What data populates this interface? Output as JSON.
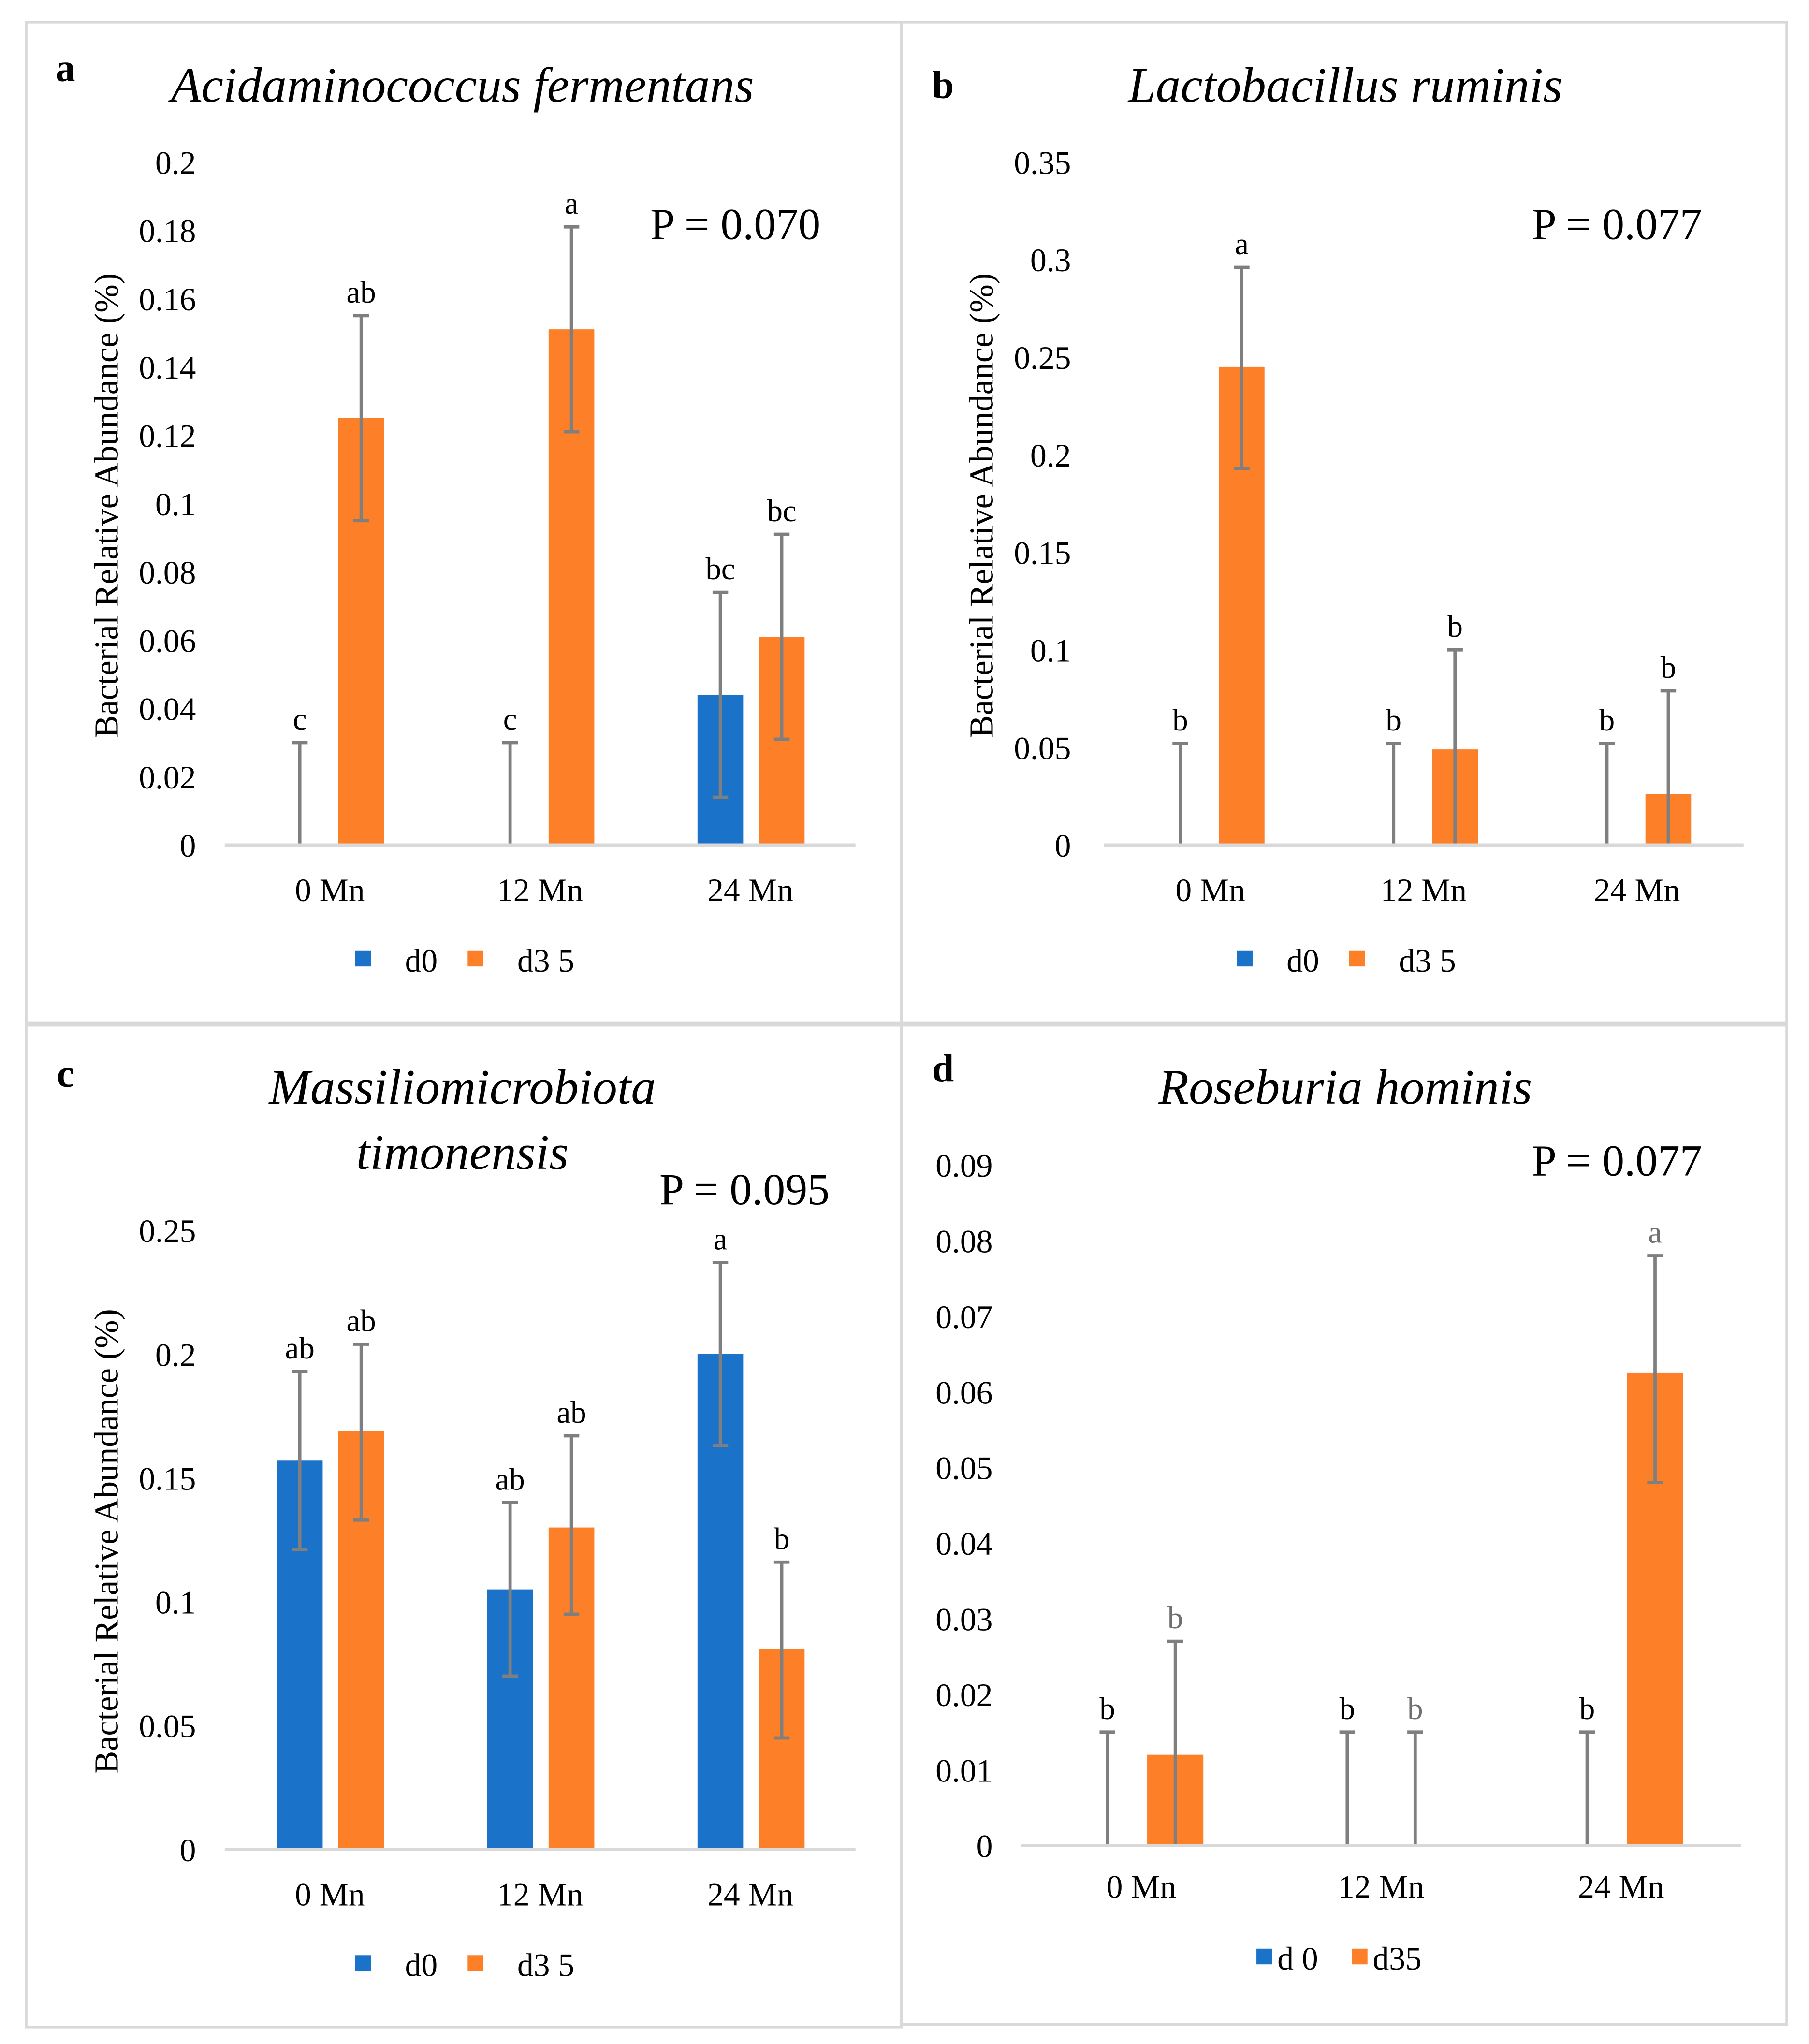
{
  "chart_data": [
    {
      "type": "bar",
      "panel": "a",
      "title": [
        "Acidaminococcus fermentans"
      ],
      "p_value": "P = 0.070",
      "ylabel": "Bacterial Relative Abundance (%)",
      "ylim": [
        0,
        0.2
      ],
      "yticks": [
        "0",
        "0.02",
        "0.04",
        "0.06",
        "0.08",
        "0.1",
        "0.12",
        "0.14",
        "0.16",
        "0.18",
        "0.2"
      ],
      "categories": [
        "0 Mn",
        "12 Mn",
        "24 Mn"
      ],
      "legend": [
        "d0",
        "d3 5"
      ],
      "series": [
        {
          "name": "d0",
          "color": "#1a72c9",
          "values": [
            0,
            0,
            0.044
          ],
          "err_high": [
            0.03,
            0.03,
            0.074
          ],
          "err_low": [
            0,
            0,
            0.014
          ],
          "letters": [
            "c",
            "c",
            "bc"
          ]
        },
        {
          "name": "d35",
          "color": "#fd7f28",
          "values": [
            0.125,
            0.151,
            0.061
          ],
          "err_high": [
            0.155,
            0.181,
            0.091
          ],
          "err_low": [
            0.095,
            0.121,
            0.031
          ],
          "letters": [
            "ab",
            "a",
            "bc"
          ]
        }
      ]
    },
    {
      "type": "bar",
      "panel": "b",
      "title": [
        "Lactobacillus ruminis"
      ],
      "p_value": "P = 0.077",
      "ylabel": "Bacterial Relative Abundance (%)",
      "ylim": [
        0,
        0.35
      ],
      "yticks": [
        "0",
        "0.05",
        "0.1",
        "0.15",
        "0.2",
        "0.25",
        "0.3",
        "0.35"
      ],
      "categories": [
        "0 Mn",
        "12 Mn",
        "24 Mn"
      ],
      "legend": [
        "d0",
        "d3 5"
      ],
      "series": [
        {
          "name": "d0",
          "color": "#1a72c9",
          "values": [
            0,
            0,
            0
          ],
          "err_high": [
            0.052,
            0.052,
            0.052
          ],
          "err_low": [
            0,
            0,
            0
          ],
          "letters": [
            "b",
            "b",
            "b"
          ]
        },
        {
          "name": "d35",
          "color": "#fd7f28",
          "values": [
            0.245,
            0.049,
            0.026
          ],
          "err_high": [
            0.296,
            0.1,
            0.079
          ],
          "err_low": [
            0.193,
            0,
            0
          ],
          "letters": [
            "a",
            "b",
            "b"
          ]
        }
      ]
    },
    {
      "type": "bar",
      "panel": "c",
      "title": [
        "Massiliomicrobiota",
        "timonensis"
      ],
      "p_value": "P = 0.095",
      "ylabel": "Bacterial Relative Abundance (%)",
      "ylim": [
        0,
        0.25
      ],
      "yticks": [
        "0",
        "0.05",
        "0.1",
        "0.15",
        "0.2",
        "0.25"
      ],
      "categories": [
        "0 Mn",
        "12 Mn",
        "24 Mn"
      ],
      "legend": [
        "d0",
        "d3 5"
      ],
      "series": [
        {
          "name": "d0",
          "color": "#1a72c9",
          "values": [
            0.157,
            0.105,
            0.2
          ],
          "err_high": [
            0.193,
            0.14,
            0.237
          ],
          "err_low": [
            0.121,
            0.07,
            0.163
          ],
          "letters": [
            "ab",
            "ab",
            "a"
          ]
        },
        {
          "name": "d35",
          "color": "#fd7f28",
          "values": [
            0.169,
            0.13,
            0.081
          ],
          "err_high": [
            0.204,
            0.167,
            0.116
          ],
          "err_low": [
            0.133,
            0.095,
            0.045
          ],
          "letters": [
            "ab",
            "ab",
            "b"
          ]
        }
      ]
    },
    {
      "type": "bar",
      "panel": "d",
      "title": [
        "Roseburia hominis"
      ],
      "p_value": "P = 0.077",
      "ylabel": "",
      "ylim": [
        0,
        0.09
      ],
      "yticks": [
        "0",
        "0.01",
        "0.02",
        "0.03",
        "0.04",
        "0.05",
        "0.06",
        "0.07",
        "0.08",
        "0.09"
      ],
      "categories": [
        "0 Mn",
        "12 Mn",
        "24 Mn"
      ],
      "legend": [
        "d 0",
        "d35"
      ],
      "series": [
        {
          "name": "d0",
          "color": "#1a72c9",
          "values": [
            0,
            0,
            0
          ],
          "err_high": [
            0.015,
            0.015,
            0.015
          ],
          "err_low": [
            0,
            0,
            0
          ],
          "letters": [
            "b",
            "b",
            "b"
          ]
        },
        {
          "name": "d35",
          "color": "#fd7f28",
          "values": [
            0.012,
            0,
            0.0625
          ],
          "err_high": [
            0.027,
            0.015,
            0.078
          ],
          "err_low": [
            0,
            0,
            0.048
          ],
          "letters": [
            "b",
            "b",
            "a"
          ]
        }
      ]
    }
  ]
}
